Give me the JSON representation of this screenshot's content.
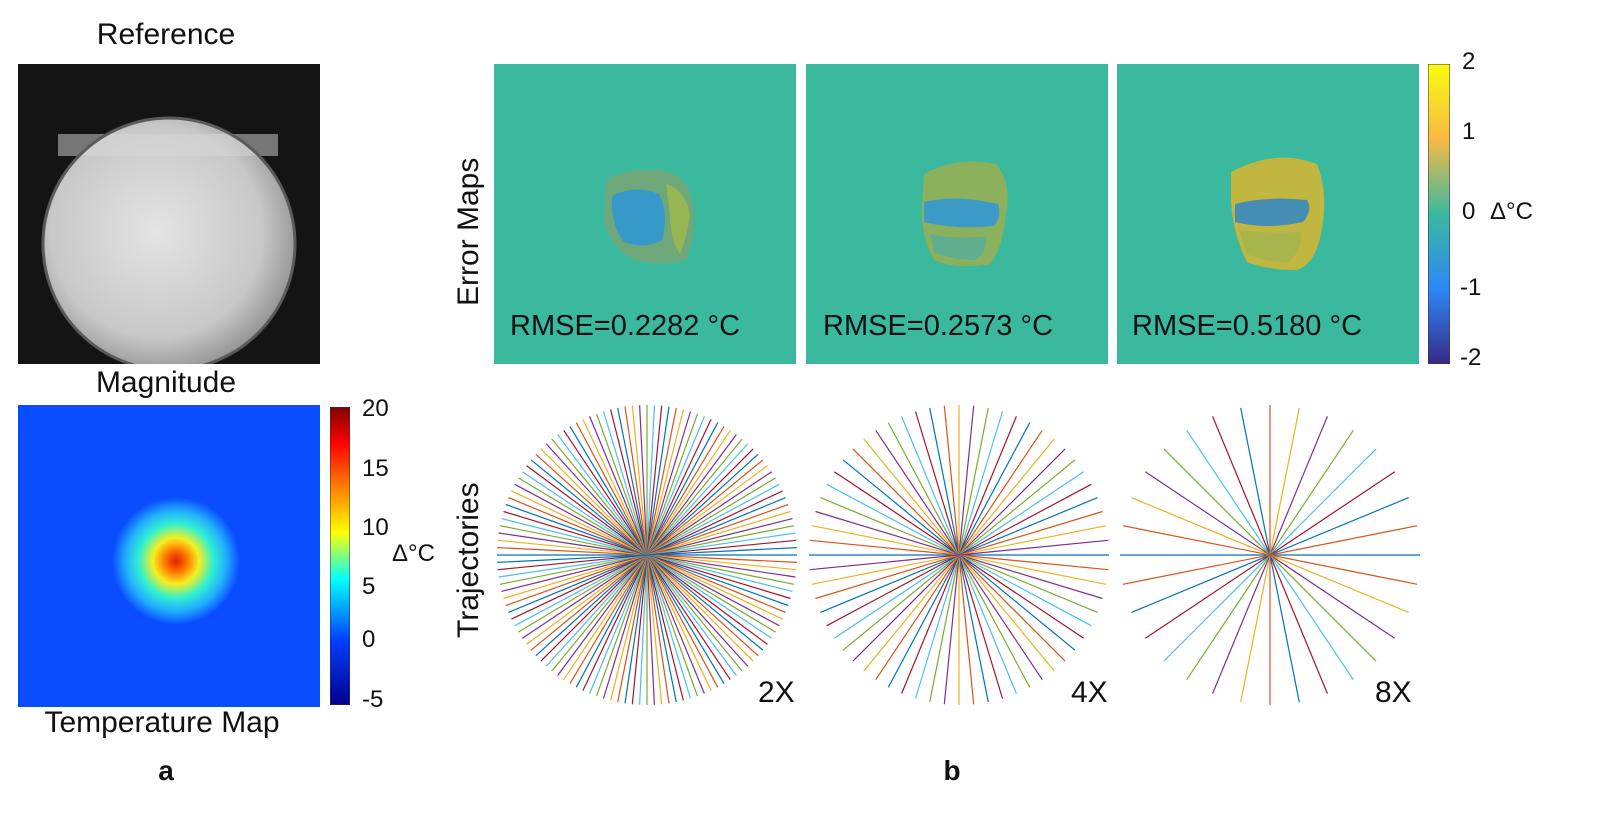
{
  "panel_a": {
    "reference_title": "Reference",
    "magnitude_label": "Magnitude",
    "temperature_label": "Temperature Map",
    "panel_letter": "a",
    "colorbar": {
      "ticks": [
        "20",
        "15",
        "10",
        "5",
        "0",
        "-5"
      ],
      "unit": "Δ°C",
      "colors": [
        "#800000",
        "#ff0000",
        "#ffff00",
        "#00ffff",
        "#0040ff",
        "#00008f"
      ]
    },
    "background_color": "#0a4cff"
  },
  "panel_b": {
    "panel_letter": "b",
    "row_error_label": "Error Maps",
    "row_traj_label": "Trajectories",
    "error_maps": [
      {
        "rmse": "RMSE=0.2282 °C"
      },
      {
        "rmse": "RMSE=0.2573 °C"
      },
      {
        "rmse": "RMSE=0.5180 °C"
      }
    ],
    "trajectories": [
      {
        "factor": "2X",
        "spokes": 64
      },
      {
        "factor": "4X",
        "spokes": 32
      },
      {
        "factor": "8X",
        "spokes": 16
      }
    ],
    "colorbar": {
      "ticks": [
        "2",
        "1",
        "0",
        "-1",
        "-2"
      ],
      "unit": "Δ°C",
      "colors": [
        "#f9fb0e",
        "#f8ba43",
        "#3bb99f",
        "#2e87f7",
        "#352a87"
      ]
    },
    "map_background": "#3bb99f"
  }
}
